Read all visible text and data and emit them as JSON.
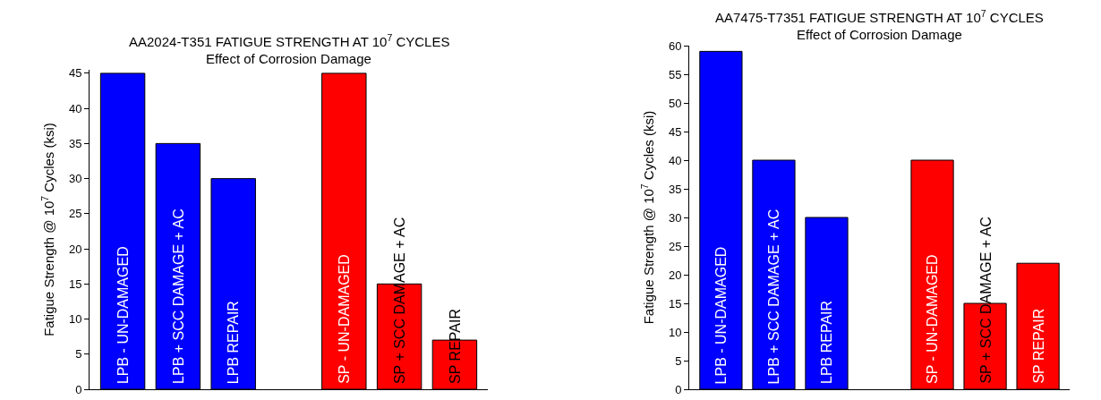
{
  "chart_data": [
    {
      "type": "bar",
      "title": "AA2024-T351 FATIGUE STRENGTH AT 10$^{7}$ CYCLES",
      "subtitle": "Effect of Corrosion Damage",
      "ylabel": "Fatigue Strength @ 10$^{7}$ Cycles (ksi)",
      "categories": [
        "LPB - UN-DAMAGED",
        "LPB + SCC DAMAGE + AC",
        "LPB REPAIR",
        null,
        "SP - UN-DAMAGED",
        "SP + SCC DAMAGE + AC",
        "SP REPAIR"
      ],
      "values": [
        45,
        35,
        30,
        null,
        45,
        15,
        7
      ],
      "colors": [
        "#0000ff",
        "#0000ff",
        "#0000ff",
        null,
        "#ff0000",
        "#ff0000",
        "#ff0000"
      ],
      "ylim": [
        0,
        45.5
      ],
      "yticks": [
        0,
        5,
        10,
        15,
        20,
        25,
        30,
        35,
        40,
        45
      ],
      "grid": false,
      "legend": false
    },
    {
      "type": "bar",
      "title": "AA7475-T7351 FATIGUE STRENGTH AT 10$^{7}$ CYCLES",
      "subtitle": "Effect of Corrosion Damage",
      "ylabel": "Fatigue Strength @ 10$^{7}$ Cycles (ksi)",
      "categories": [
        "LPB - UN-DAMAGED",
        "LPB + SCC DAMAGE + AC",
        "LPB REPAIR",
        null,
        "SP - UN-DAMAGED",
        "SP + SCC DAMAGE + AC",
        "SP REPAIR"
      ],
      "values": [
        59,
        40,
        30,
        null,
        40,
        15,
        22
      ],
      "colors": [
        "#0000ff",
        "#0000ff",
        "#0000ff",
        null,
        "#ff0000",
        "#ff0000",
        "#ff0000"
      ],
      "ylim": [
        0,
        60
      ],
      "yticks": [
        0,
        5,
        10,
        15,
        20,
        25,
        30,
        35,
        40,
        45,
        50,
        55,
        60
      ],
      "grid": false,
      "legend": false
    }
  ]
}
